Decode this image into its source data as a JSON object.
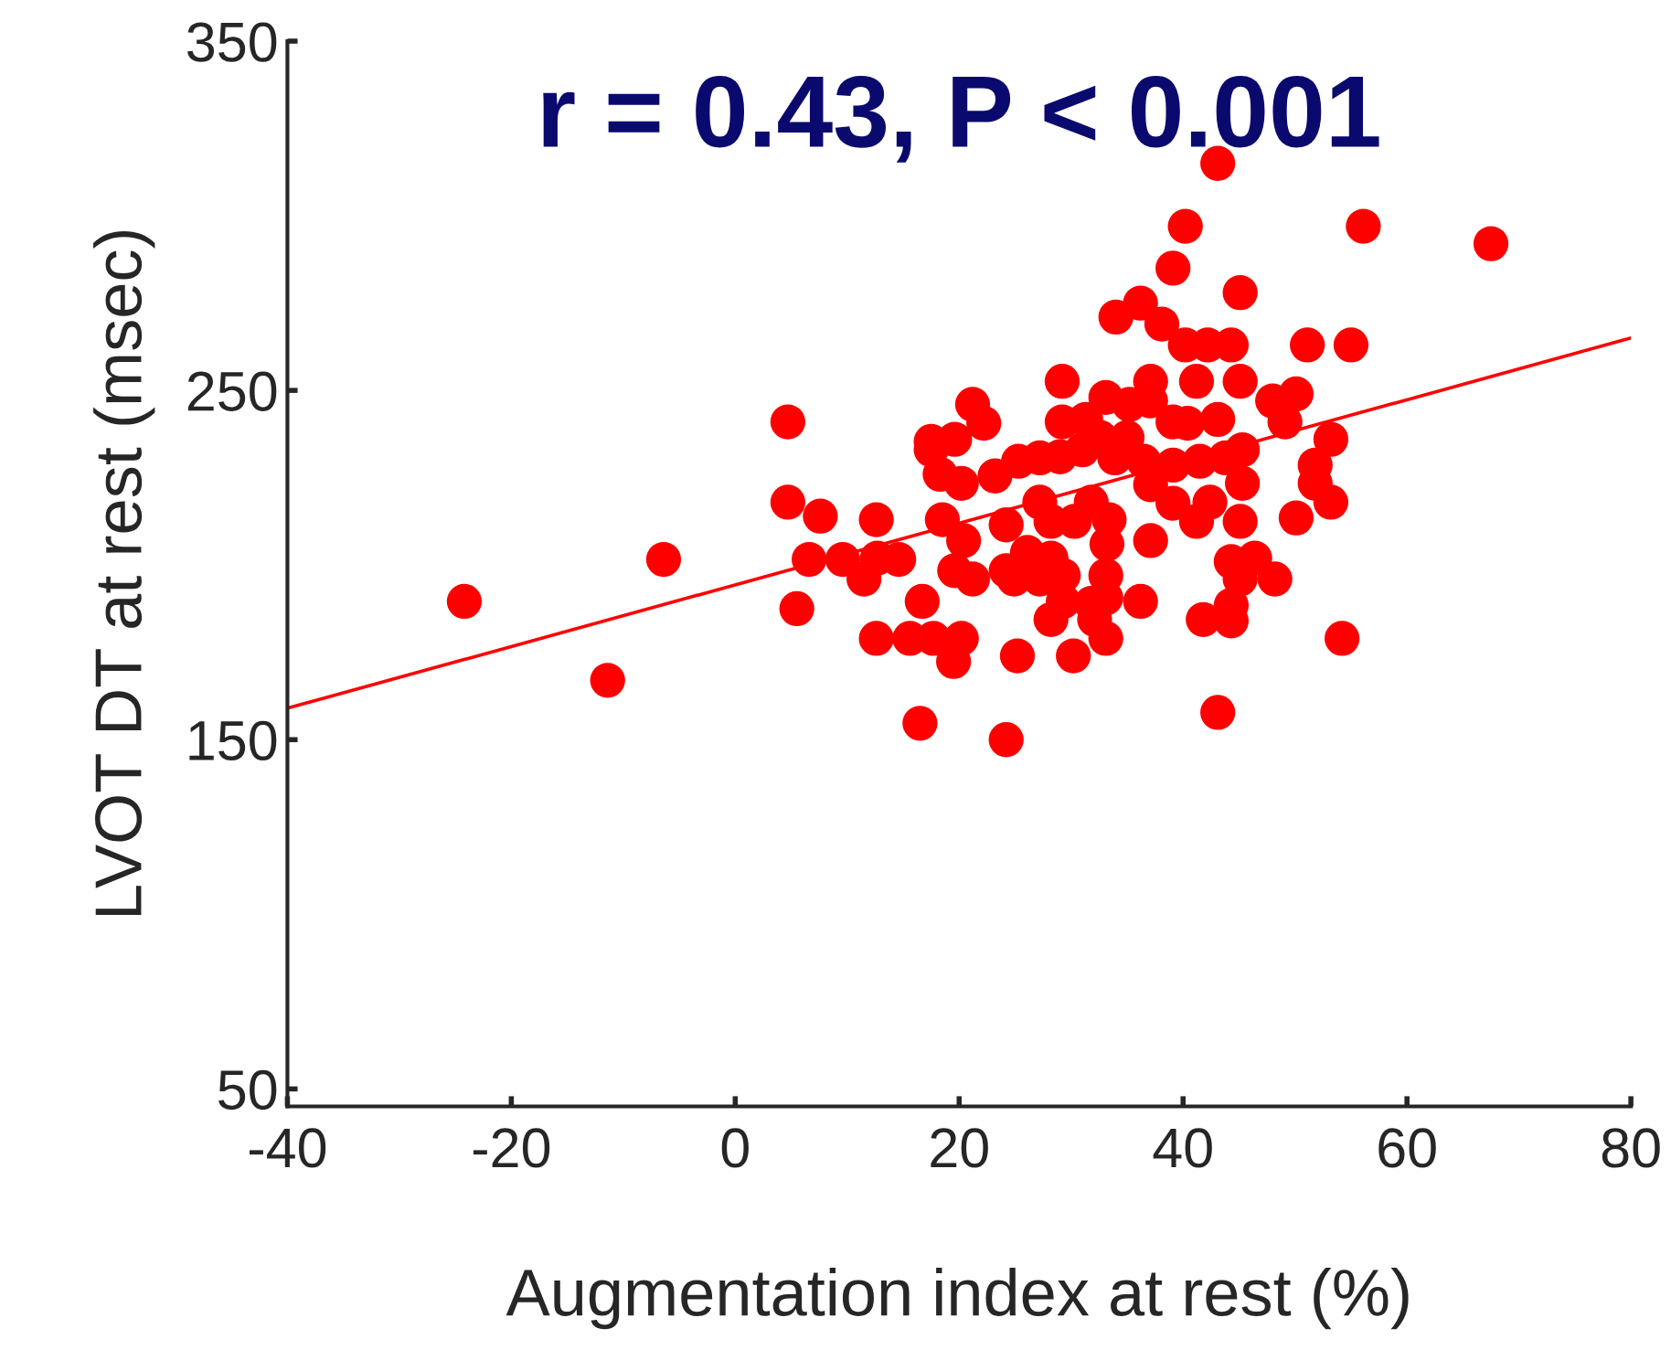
{
  "chart_data": {
    "type": "scatter",
    "title": "r = 0.43, P < 0.001",
    "xlabel": "Augmentation index at rest (%)",
    "ylabel": "LVOT DT at rest (msec)",
    "xlim": [
      -40,
      80
    ],
    "ylim": [
      45,
      350
    ],
    "xticks": [
      -40,
      -20,
      0,
      20,
      40,
      60,
      80
    ],
    "yticks": [
      50,
      150,
      250,
      350
    ],
    "grid": false,
    "legend": false,
    "marker": "circle",
    "series": [
      {
        "color": "#ff0000",
        "x": [
          -24.2,
          -11.4,
          -6.4,
          43.1,
          40.2,
          56.1,
          67.5,
          39.1,
          45.1,
          36.2,
          34.0,
          38.1,
          40.2,
          42.2,
          44.3,
          51.1,
          55.0,
          29.2,
          37.1,
          41.2,
          45.1,
          33.1,
          35.2,
          37.1,
          48.0,
          50.1,
          21.2,
          22.2,
          4.7,
          29.2,
          31.3,
          39.1,
          40.4,
          43.1,
          49.1,
          17.5,
          19.6,
          53.2,
          32.6,
          35.0,
          45.3,
          43.8,
          17.5,
          18.3,
          20.2,
          23.2,
          25.3,
          27.2,
          29.0,
          31.0,
          33.9,
          36.5,
          39.1,
          41.5,
          45.3,
          51.8,
          51.8,
          53.2,
          37.1,
          39.1,
          42.4,
          41.2,
          45.1,
          50.1,
          4.7,
          7.6,
          12.6,
          18.5,
          27.2,
          31.8,
          33.4,
          30.3,
          24.2,
          28.2,
          33.2,
          37.1,
          20.4,
          6.6,
          9.6,
          12.7,
          14.6,
          19.6,
          24.2,
          26.1,
          28.2,
          21.2,
          11.5,
          24.9,
          27.2,
          29.3,
          44.3,
          46.4,
          45.1,
          48.2,
          33.1,
          33.1,
          29.3,
          5.5,
          16.7,
          36.2,
          31.8,
          28.2,
          32.1,
          41.8,
          44.3,
          44.3,
          12.6,
          15.6,
          17.7,
          20.2,
          19.5,
          33.1,
          25.2,
          30.2,
          54.2,
          16.5,
          24.2,
          43.1
        ],
        "values": [
          189.6,
          167,
          201.6,
          315,
          297,
          297,
          292,
          285,
          278,
          275,
          271,
          269,
          263,
          263,
          263,
          263,
          263,
          252.6,
          252.6,
          252.6,
          252.6,
          248,
          246,
          247,
          247,
          249,
          246,
          240.6,
          241,
          241,
          241.7,
          241,
          240.6,
          241.7,
          241,
          235.4,
          236,
          236,
          236.5,
          236.5,
          233,
          230.7,
          233,
          226,
          223.4,
          225.5,
          229.7,
          230.7,
          231,
          233,
          230.7,
          229.7,
          228.6,
          229.7,
          223.4,
          228.6,
          223.4,
          218,
          223,
          217.7,
          218,
          212.5,
          212.5,
          213.5,
          218,
          214,
          213,
          213,
          218,
          218,
          213,
          212.5,
          211.5,
          212.5,
          206,
          207,
          207,
          201.6,
          201.6,
          202,
          201.6,
          198.4,
          198.4,
          203.6,
          202,
          196,
          196,
          196,
          196,
          197,
          201,
          202,
          196,
          196,
          197,
          190.6,
          189.6,
          187.5,
          189.6,
          189.6,
          189,
          184.4,
          184.4,
          184.4,
          188.5,
          184,
          179,
          179,
          179,
          179,
          172.4,
          179,
          174,
          174,
          179,
          154.7,
          150,
          157.8
        ]
      },
      {
        "type": "line",
        "color": "#ff0000",
        "x": [
          -40,
          80
        ],
        "values": [
          159,
          265
        ],
        "marker": "none",
        "line_style": "solid"
      }
    ]
  }
}
